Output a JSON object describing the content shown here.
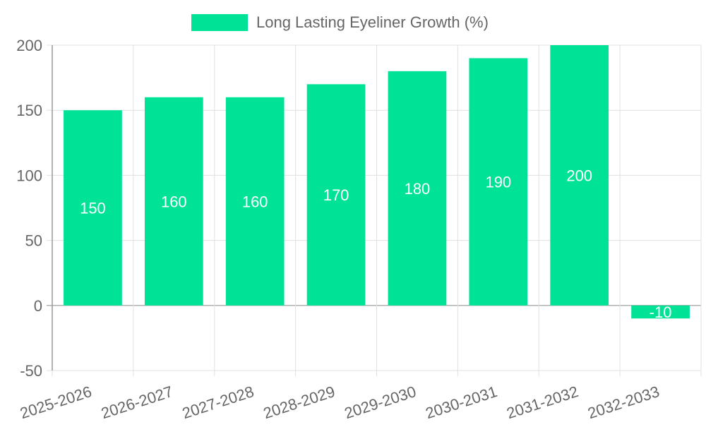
{
  "chart_data": {
    "type": "bar",
    "categories": [
      "2025-2026",
      "2026-2027",
      "2027-2028",
      "2028-2029",
      "2029-2030",
      "2030-2031",
      "2031-2032",
      "2032-2033"
    ],
    "series": [
      {
        "name": "Long Lasting Eyeliner Growth (%)",
        "values": [
          150,
          160,
          160,
          170,
          180,
          190,
          200,
          -10
        ]
      }
    ],
    "title": "",
    "xlabel": "",
    "ylabel": "",
    "ylim": [
      -50,
      200
    ],
    "yticks": [
      -50,
      0,
      50,
      100,
      150,
      200
    ],
    "grid": true,
    "legend_position": "top-center",
    "data_labels": true,
    "colors": {
      "bar": "#00e396",
      "grid": "#e0e0e0",
      "axis": "#999999",
      "zero_line": "#b0b0b0",
      "text": "#666666",
      "data_label": "#ffffff"
    }
  }
}
